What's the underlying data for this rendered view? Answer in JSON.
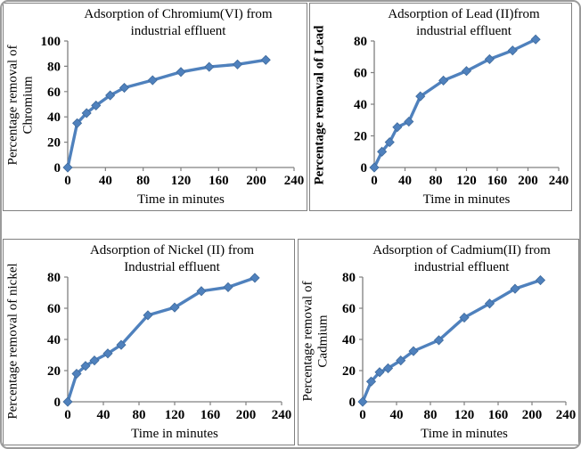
{
  "figure": {
    "background_color": "#ffffff",
    "outer_border_color": "#9a9a9a",
    "panel_border_color": "#808080"
  },
  "chart_data": [
    {
      "id": "chromium",
      "type": "line",
      "title": "Adsorption of Chromium(VI) from industrial effluent",
      "title_lines": [
        "Adsorption of Chromium(VI) from",
        "industrial effluent"
      ],
      "xlabel": "Time in minutes",
      "ylabel": "Percentage removal of Chromium",
      "x": [
        0,
        10,
        20,
        30,
        45,
        60,
        90,
        120,
        150,
        180,
        210
      ],
      "y": [
        0,
        35,
        43,
        49,
        57,
        63,
        69,
        75.5,
        79.5,
        81.5,
        85
      ],
      "xlim": [
        0,
        240
      ],
      "ylim": [
        0,
        100
      ],
      "xticks": [
        0,
        40,
        80,
        120,
        160,
        200,
        240
      ],
      "yticks": [
        0,
        20,
        40,
        60,
        80,
        100
      ],
      "line_color": "#4F81BD",
      "axis_color": "#808080",
      "marker": "diamond",
      "grid": "off",
      "legend": "none"
    },
    {
      "id": "lead",
      "type": "line",
      "title": "Adsorption of Lead (II)from industrial effluent",
      "title_lines": [
        "Adsorption of Lead (II)from",
        "industrial effluent"
      ],
      "xlabel": "Time in minutes",
      "ylabel": "Percentage removal of Lead",
      "x": [
        0,
        10,
        20,
        30,
        45,
        60,
        90,
        120,
        150,
        180,
        210
      ],
      "y": [
        0,
        10,
        16,
        25.5,
        29,
        45,
        55,
        61,
        68.5,
        74,
        81
      ],
      "xlim": [
        0,
        240
      ],
      "ylim": [
        0,
        80
      ],
      "xticks": [
        0,
        40,
        80,
        120,
        160,
        200,
        240
      ],
      "yticks": [
        0,
        20,
        40,
        60,
        80
      ],
      "line_color": "#4F81BD",
      "axis_color": "#808080",
      "marker": "diamond",
      "grid": "off",
      "legend": "none"
    },
    {
      "id": "nickel",
      "type": "line",
      "title": "Adsorption of Nickel (II) from Industrial effluent",
      "title_lines": [
        "Adsorption of Nickel (II) from",
        "Industrial effluent"
      ],
      "xlabel": "Time in minutes",
      "ylabel": "Percentage removal of nickel",
      "x": [
        0,
        10,
        20,
        30,
        45,
        60,
        90,
        120,
        150,
        180,
        210
      ],
      "y": [
        0,
        18,
        23,
        26.5,
        31,
        36.5,
        55.5,
        60.5,
        71,
        73.5,
        79.5
      ],
      "xlim": [
        0,
        240
      ],
      "ylim": [
        0,
        80
      ],
      "xticks": [
        0,
        40,
        80,
        120,
        160,
        200,
        240
      ],
      "yticks": [
        0,
        20,
        40,
        60,
        80
      ],
      "line_color": "#4F81BD",
      "axis_color": "#808080",
      "marker": "diamond",
      "grid": "off",
      "legend": "none"
    },
    {
      "id": "cadmium",
      "type": "line",
      "title": "Adsorption of Cadmium(II) from industrial effluent",
      "title_lines": [
        "Adsorption of Cadmium(II) from",
        "industrial effluent"
      ],
      "xlabel": "Time in minutes",
      "ylabel": "Percentage removal of Cadmium",
      "x": [
        0,
        10,
        20,
        30,
        45,
        60,
        90,
        120,
        150,
        180,
        210
      ],
      "y": [
        0,
        13,
        19,
        21.5,
        26.5,
        32.5,
        39.5,
        54,
        63,
        72.5,
        78
      ],
      "xlim": [
        0,
        240
      ],
      "ylim": [
        0,
        80
      ],
      "xticks": [
        0,
        40,
        80,
        120,
        160,
        200,
        240
      ],
      "yticks": [
        0,
        20,
        40,
        60,
        80
      ],
      "line_color": "#4F81BD",
      "axis_color": "#808080",
      "marker": "diamond",
      "grid": "off",
      "legend": "none"
    }
  ]
}
